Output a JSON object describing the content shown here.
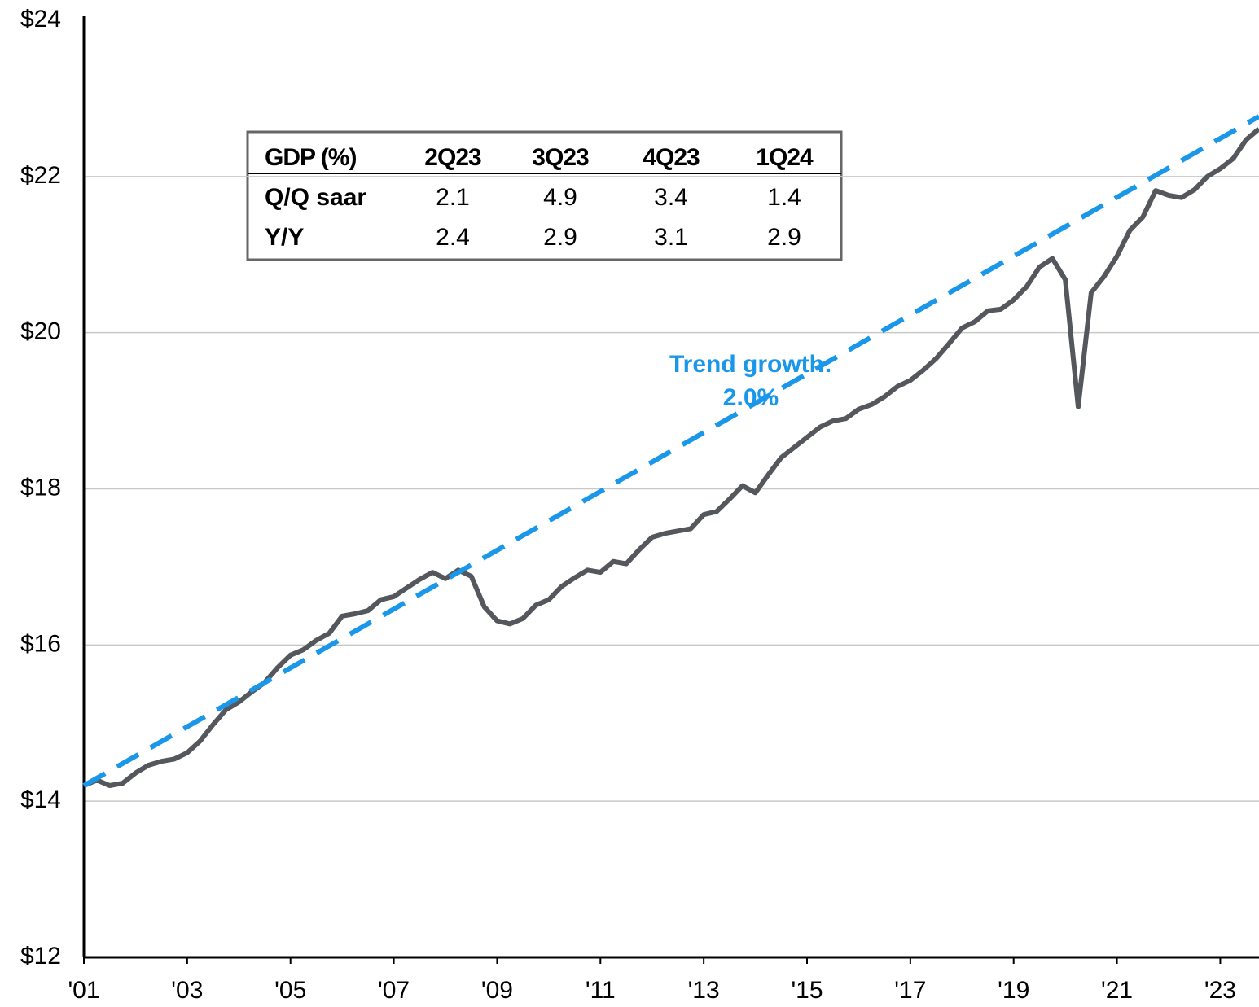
{
  "chart_data": {
    "type": "line",
    "x": [
      2001,
      2001.25,
      2001.5,
      2001.75,
      2002,
      2002.25,
      2002.5,
      2002.75,
      2003,
      2003.25,
      2003.5,
      2003.75,
      2004,
      2004.25,
      2004.5,
      2004.75,
      2005,
      2005.25,
      2005.5,
      2005.75,
      2006,
      2006.25,
      2006.5,
      2006.75,
      2007,
      2007.25,
      2007.5,
      2007.75,
      2008,
      2008.25,
      2008.5,
      2008.75,
      2009,
      2009.25,
      2009.5,
      2009.75,
      2010,
      2010.25,
      2010.5,
      2010.75,
      2011,
      2011.25,
      2011.5,
      2011.75,
      2012,
      2012.25,
      2012.5,
      2012.75,
      2013,
      2013.25,
      2013.5,
      2013.75,
      2014,
      2014.25,
      2014.5,
      2014.75,
      2015,
      2015.25,
      2015.5,
      2015.75,
      2016,
      2016.25,
      2016.5,
      2016.75,
      2017,
      2017.25,
      2017.5,
      2017.75,
      2018,
      2018.25,
      2018.5,
      2018.75,
      2019,
      2019.25,
      2019.5,
      2019.75,
      2020,
      2020.25,
      2020.5,
      2020.75,
      2021,
      2021.25,
      2021.5,
      2021.75,
      2022,
      2022.25,
      2022.5,
      2022.75,
      2023,
      2023.25,
      2023.5,
      2023.75
    ],
    "series": [
      {
        "color": "#54585c",
        "values": [
          14.2,
          14.27,
          14.2,
          14.23,
          14.36,
          14.46,
          14.51,
          14.54,
          14.62,
          14.77,
          14.98,
          15.17,
          15.27,
          15.4,
          15.52,
          15.71,
          15.87,
          15.94,
          16.06,
          16.15,
          16.37,
          16.4,
          16.44,
          16.58,
          16.62,
          16.73,
          16.84,
          16.93,
          16.85,
          16.96,
          16.88,
          16.49,
          16.31,
          16.27,
          16.34,
          16.51,
          16.58,
          16.75,
          16.86,
          16.96,
          16.93,
          17.07,
          17.04,
          17.22,
          17.38,
          17.43,
          17.46,
          17.49,
          17.67,
          17.71,
          17.87,
          18.04,
          17.95,
          18.18,
          18.4,
          18.53,
          18.66,
          18.79,
          18.87,
          18.9,
          19.02,
          19.08,
          19.18,
          19.31,
          19.39,
          19.52,
          19.67,
          19.86,
          20.06,
          20.14,
          20.28,
          20.3,
          20.42,
          20.59,
          20.84,
          20.95,
          20.68,
          19.05,
          20.51,
          20.72,
          20.98,
          21.31,
          21.48,
          21.82,
          21.76,
          21.73,
          21.83,
          22.0,
          22.1,
          22.23,
          22.47,
          22.61
        ]
      }
    ],
    "trend": {
      "color": "#1b97ea",
      "x": [
        2001,
        2023.75
      ],
      "values": [
        14.2,
        22.77
      ]
    },
    "annotation": [
      "Trend growth:",
      "2.0%"
    ],
    "xlim": [
      2001,
      2023.75
    ],
    "xticks": [
      {
        "value": 2001,
        "label": "'01"
      },
      {
        "value": 2003,
        "label": "'03"
      },
      {
        "value": 2005,
        "label": "'05"
      },
      {
        "value": 2007,
        "label": "'07"
      },
      {
        "value": 2009,
        "label": "'09"
      },
      {
        "value": 2011,
        "label": "'11"
      },
      {
        "value": 2013,
        "label": "'13"
      },
      {
        "value": 2015,
        "label": "'15"
      },
      {
        "value": 2017,
        "label": "'17"
      },
      {
        "value": 2019,
        "label": "'19"
      },
      {
        "value": 2021,
        "label": "'21"
      },
      {
        "value": 2023,
        "label": "'23"
      }
    ],
    "ylim": [
      12,
      24
    ],
    "yticks": [
      {
        "value": 12,
        "label": "$12"
      },
      {
        "value": 14,
        "label": "$14"
      },
      {
        "value": 16,
        "label": "$16"
      },
      {
        "value": 18,
        "label": "$18"
      },
      {
        "value": 20,
        "label": "$20"
      },
      {
        "value": 22,
        "label": "$22"
      },
      {
        "value": 24,
        "label": "$24"
      }
    ],
    "grid": true,
    "table": {
      "header": [
        "GDP (%)",
        "2Q23",
        "3Q23",
        "4Q23",
        "1Q24"
      ],
      "rows": [
        [
          "Q/Q saar",
          2.1,
          4.9,
          3.4,
          1.4
        ],
        [
          "Y/Y",
          2.4,
          2.9,
          3.1,
          2.9
        ]
      ]
    }
  }
}
